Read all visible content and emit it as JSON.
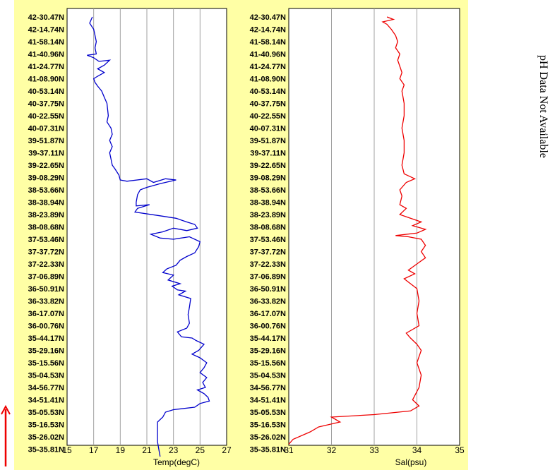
{
  "chart_data": [
    {
      "type": "line",
      "xlabel": "Temp(degC)",
      "xlim": [
        15,
        27
      ],
      "xticks": [
        15,
        17,
        19,
        21,
        23,
        25,
        27
      ],
      "color": "#0000cc",
      "y_labels": [
        "42-30.47N",
        "42-14.74N",
        "41-58.14N",
        "41-40.96N",
        "41-24.77N",
        "41-08.90N",
        "40-53.14N",
        "40-37.75N",
        "40-22.55N",
        "40-07.31N",
        "39-51.87N",
        "39-37.11N",
        "39-22.65N",
        "39-08.29N",
        "38-53.66N",
        "38-38.94N",
        "38-23.89N",
        "38-08.68N",
        "37-53.46N",
        "37-37.72N",
        "37-22.33N",
        "37-06.89N",
        "36-50.91N",
        "36-33.82N",
        "36-17.07N",
        "36-00.76N",
        "35-44.17N",
        "35-29.16N",
        "35-15.56N",
        "35-04.53N",
        "34-56.77N",
        "34-51.41N",
        "35-05.53N",
        "35-16.53N",
        "35-26.02N",
        "35-35.81N"
      ],
      "series": [
        {
          "name": "",
          "points": [
            [
              16.9,
              0
            ],
            [
              16.7,
              0.5
            ],
            [
              17.0,
              1
            ],
            [
              17.1,
              1.5
            ],
            [
              17.2,
              2
            ],
            [
              17.1,
              2.5
            ],
            [
              17.2,
              3
            ],
            [
              16.5,
              3.1
            ],
            [
              17.0,
              3.3
            ],
            [
              17.4,
              3.6
            ],
            [
              18.2,
              3.5
            ],
            [
              17.8,
              3.9
            ],
            [
              17.3,
              4.2
            ],
            [
              17.8,
              4.5
            ],
            [
              17.3,
              4.8
            ],
            [
              17.0,
              5
            ],
            [
              17.1,
              5.3
            ],
            [
              17.3,
              5.6
            ],
            [
              17.6,
              6
            ],
            [
              17.8,
              6.5
            ],
            [
              18.0,
              7
            ],
            [
              18.1,
              8
            ],
            [
              18.0,
              8.5
            ],
            [
              18.3,
              9
            ],
            [
              18.4,
              9.5
            ],
            [
              18.2,
              10
            ],
            [
              18.4,
              10.5
            ],
            [
              18.2,
              11
            ],
            [
              18.3,
              11.5
            ],
            [
              18.4,
              12
            ],
            [
              18.6,
              12.3
            ],
            [
              18.9,
              12.8
            ],
            [
              19.0,
              13.2
            ],
            [
              19.5,
              13.3
            ],
            [
              21.0,
              13.1
            ],
            [
              21.5,
              13.4
            ],
            [
              22.4,
              13.1
            ],
            [
              23.2,
              13.2
            ],
            [
              22.0,
              13.5
            ],
            [
              21.0,
              13.8
            ],
            [
              20.5,
              14
            ],
            [
              20.3,
              14.4
            ],
            [
              20.2,
              15
            ],
            [
              20.2,
              15.3
            ],
            [
              21.2,
              15.2
            ],
            [
              20.3,
              15.5
            ],
            [
              20.1,
              15.8
            ],
            [
              22.0,
              16.1
            ],
            [
              23.2,
              16.3
            ],
            [
              24.0,
              16.6
            ],
            [
              24.6,
              16.8
            ],
            [
              24.8,
              17.1
            ],
            [
              24.0,
              17.3
            ],
            [
              23.0,
              17.1
            ],
            [
              22.2,
              17.4
            ],
            [
              21.3,
              17.6
            ],
            [
              22.0,
              17.9
            ],
            [
              23.0,
              18.0
            ],
            [
              24.2,
              17.8
            ],
            [
              25.0,
              18.2
            ],
            [
              24.9,
              18.6
            ],
            [
              24.6,
              19.1
            ],
            [
              24.0,
              19.4
            ],
            [
              23.5,
              19.7
            ],
            [
              23.2,
              20.1
            ],
            [
              22.5,
              20.4
            ],
            [
              22.2,
              20.7
            ],
            [
              23.0,
              20.9
            ],
            [
              22.6,
              21.3
            ],
            [
              23.5,
              21.6
            ],
            [
              22.9,
              21.8
            ],
            [
              23.3,
              22.1
            ],
            [
              23.9,
              22.2
            ],
            [
              23.4,
              22.5
            ],
            [
              24.3,
              22.8
            ],
            [
              24.2,
              23.5
            ],
            [
              24.1,
              24.1
            ],
            [
              24.2,
              24.8
            ],
            [
              24.0,
              25.2
            ],
            [
              23.3,
              25.5
            ],
            [
              23.6,
              25.9
            ],
            [
              24.4,
              26.0
            ],
            [
              24.7,
              26.2
            ],
            [
              25.3,
              26.5
            ],
            [
              24.9,
              27
            ],
            [
              24.4,
              27.3
            ],
            [
              25.0,
              27.6
            ],
            [
              25.5,
              28
            ],
            [
              25.3,
              28.4
            ],
            [
              25.0,
              28.8
            ],
            [
              25.5,
              29.2
            ],
            [
              25.2,
              29.6
            ],
            [
              25.4,
              30
            ],
            [
              24.8,
              30.2
            ],
            [
              25.3,
              30.5
            ],
            [
              25.6,
              30.8
            ],
            [
              25.7,
              31.1
            ],
            [
              25.0,
              31.3
            ],
            [
              24.6,
              31.6
            ],
            [
              23.0,
              31.8
            ],
            [
              22.4,
              32
            ],
            [
              22.2,
              32.4
            ],
            [
              21.8,
              32.8
            ],
            [
              21.8,
              33.6
            ],
            [
              21.8,
              34.4
            ],
            [
              21.9,
              35
            ],
            [
              22.0,
              35.6
            ]
          ]
        }
      ]
    },
    {
      "type": "line",
      "xlabel": "Sal(psu)",
      "xlim": [
        31,
        35
      ],
      "xticks": [
        31,
        32,
        33,
        34,
        35
      ],
      "color": "#ee0000",
      "y_labels": [
        "42-30.47N",
        "42-14.74N",
        "41-58.14N",
        "41-40.96N",
        "41-24.77N",
        "41-08.90N",
        "40-53.14N",
        "40-37.75N",
        "40-22.55N",
        "40-07.31N",
        "39-51.87N",
        "39-37.11N",
        "39-22.65N",
        "39-08.29N",
        "38-53.66N",
        "38-38.94N",
        "38-23.89N",
        "38-08.68N",
        "37-53.46N",
        "37-37.72N",
        "37-22.33N",
        "37-06.89N",
        "36-50.91N",
        "36-33.82N",
        "36-17.07N",
        "36-00.76N",
        "35-44.17N",
        "35-29.16N",
        "35-15.56N",
        "35-04.53N",
        "34-56.77N",
        "34-51.41N",
        "35-05.53N",
        "35-16.53N",
        "35-26.02N",
        "35-35.81N"
      ],
      "series": [
        {
          "name": "",
          "points": [
            [
              33.3,
              0
            ],
            [
              33.45,
              0.2
            ],
            [
              33.2,
              0.4
            ],
            [
              33.3,
              0.6
            ],
            [
              33.4,
              1
            ],
            [
              33.5,
              1.5
            ],
            [
              33.55,
              2
            ],
            [
              33.5,
              2.5
            ],
            [
              33.6,
              3
            ],
            [
              33.55,
              3.5
            ],
            [
              33.6,
              4
            ],
            [
              33.65,
              4.5
            ],
            [
              33.6,
              5
            ],
            [
              33.7,
              5.5
            ],
            [
              33.65,
              6
            ],
            [
              33.7,
              7
            ],
            [
              33.7,
              8
            ],
            [
              33.65,
              9
            ],
            [
              33.7,
              10
            ],
            [
              33.7,
              11
            ],
            [
              33.65,
              12
            ],
            [
              33.7,
              12.7
            ],
            [
              33.95,
              13.1
            ],
            [
              33.75,
              13.4
            ],
            [
              33.6,
              14
            ],
            [
              33.65,
              14.5
            ],
            [
              33.6,
              15.2
            ],
            [
              33.75,
              15.5
            ],
            [
              33.6,
              16
            ],
            [
              33.85,
              16.3
            ],
            [
              34.1,
              16.6
            ],
            [
              33.9,
              16.9
            ],
            [
              34.2,
              17.2
            ],
            [
              34.0,
              17.5
            ],
            [
              33.5,
              17.7
            ],
            [
              33.8,
              17.8
            ],
            [
              34.1,
              18
            ],
            [
              34.2,
              18.5
            ],
            [
              34.1,
              19
            ],
            [
              34.2,
              19.5
            ],
            [
              34.0,
              20
            ],
            [
              33.8,
              20.5
            ],
            [
              33.95,
              20.8
            ],
            [
              33.7,
              21.2
            ],
            [
              33.85,
              21.6
            ],
            [
              34.0,
              22
            ],
            [
              34.05,
              23
            ],
            [
              34.0,
              24
            ],
            [
              34.05,
              25
            ],
            [
              33.75,
              25.6
            ],
            [
              33.85,
              26
            ],
            [
              34.0,
              26.5
            ],
            [
              34.1,
              27
            ],
            [
              34.0,
              28
            ],
            [
              34.1,
              29
            ],
            [
              34.05,
              30
            ],
            [
              33.9,
              31
            ],
            [
              34.05,
              31.5
            ],
            [
              33.85,
              31.9
            ],
            [
              33.0,
              32.2
            ],
            [
              32.0,
              32.4
            ],
            [
              32.2,
              32.8
            ],
            [
              31.7,
              33.2
            ],
            [
              31.5,
              33.6
            ],
            [
              31.1,
              34.2
            ],
            [
              31.0,
              34.6
            ]
          ]
        }
      ]
    }
  ],
  "side_note": "pH Data Not Available"
}
